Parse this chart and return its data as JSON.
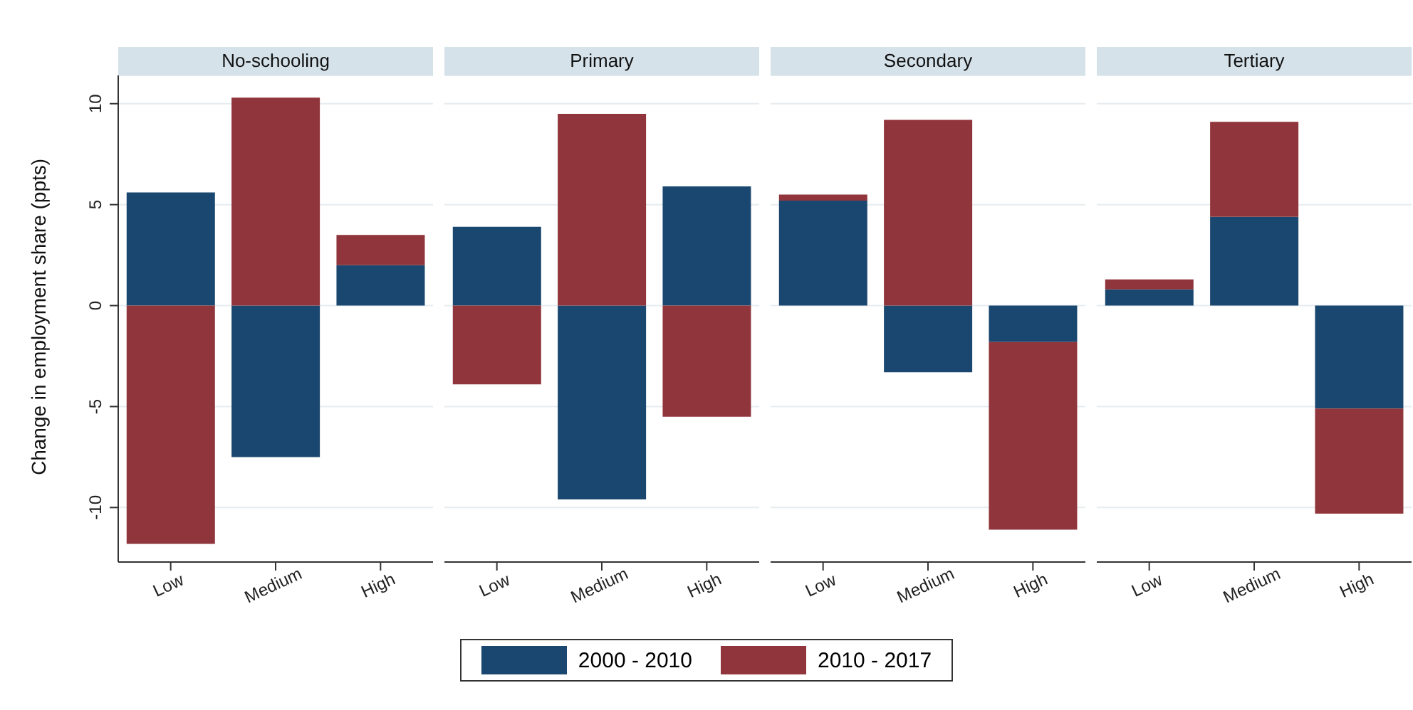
{
  "chart_data": [
    {
      "type": "bar",
      "title": "No-schooling",
      "ylabel": "Change in employment share (ppts)",
      "categories": [
        "Low",
        "Medium",
        "High"
      ],
      "stacked": true,
      "series": [
        {
          "name": "2000 - 2010",
          "color": "#1a476f",
          "values": [
            5.6,
            -7.5,
            2.0
          ]
        },
        {
          "name": "2010 - 2017",
          "color": "#90353b",
          "values": [
            -11.8,
            10.3,
            1.5
          ]
        }
      ],
      "ylim": [
        -12.7,
        11.4
      ],
      "yticks": [
        -10,
        -5,
        0,
        5,
        10
      ],
      "grid": "y",
      "legend": "bottom"
    },
    {
      "type": "bar",
      "title": "Primary",
      "categories": [
        "Low",
        "Medium",
        "High"
      ],
      "stacked": true,
      "series": [
        {
          "color": "#1a476f",
          "values": [
            3.9,
            -9.6,
            5.9
          ]
        },
        {
          "color": "#90353b",
          "values": [
            -3.9,
            9.5,
            -5.5
          ]
        }
      ],
      "ylim": [
        -12.7,
        11.4
      ],
      "yticks": [
        -10,
        -5,
        0,
        5,
        10
      ],
      "grid": "y",
      "tick_labels": "x"
    },
    {
      "type": "bar",
      "title": "Secondary",
      "categories": [
        "Low",
        "Medium",
        "High"
      ],
      "stacked": true,
      "series": [
        {
          "color": "#1a476f",
          "values": [
            5.2,
            -3.3,
            -1.8
          ]
        },
        {
          "color": "#90353b",
          "values": [
            0.3,
            9.2,
            -9.3
          ]
        }
      ],
      "ylim": [
        -12.7,
        11.4
      ],
      "yticks": [
        -10,
        -5,
        0,
        5,
        10
      ],
      "grid": "y",
      "tick_labels": "x"
    },
    {
      "type": "bar",
      "title": "Tertiary",
      "categories": [
        "Low",
        "Medium",
        "High"
      ],
      "stacked": true,
      "series": [
        {
          "color": "#1a476f",
          "values": [
            0.8,
            4.4,
            -5.1
          ]
        },
        {
          "color": "#90353b",
          "values": [
            0.5,
            4.7,
            -5.2
          ]
        }
      ],
      "ylim": [
        -12.7,
        11.4
      ],
      "yticks": [
        -10,
        -5,
        0,
        5,
        10
      ],
      "grid": "y",
      "tick_labels": "x"
    }
  ]
}
